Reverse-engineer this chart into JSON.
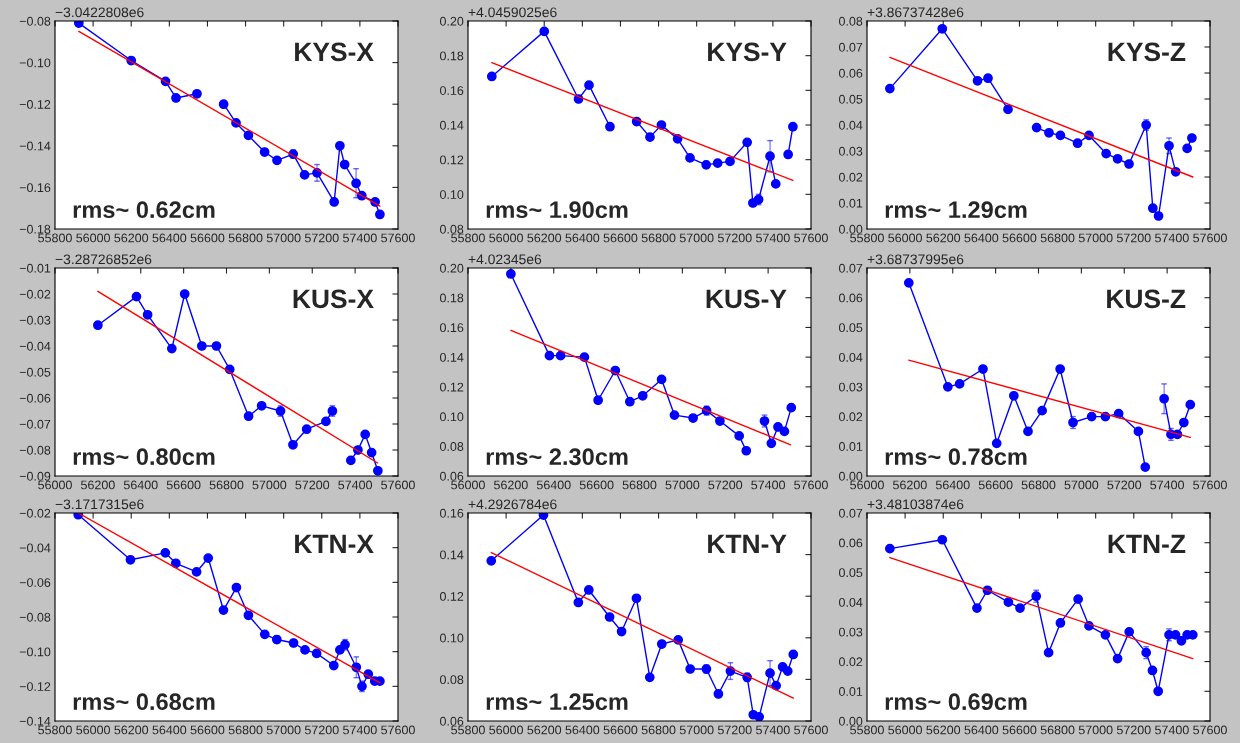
{
  "chart_data": [
    {
      "type": "line",
      "title": "KYS-X",
      "annotations": [
        "−3.0422808e6",
        "rms~ 0.62cm"
      ],
      "xlim": [
        55800,
        57600
      ],
      "xticks": [
        55800,
        56000,
        56200,
        56400,
        56600,
        56800,
        57000,
        57200,
        57400,
        57600
      ],
      "ylim": [
        -0.18,
        -0.08
      ],
      "yticks": [
        {
          "value": -0.18,
          "label": "−0.18"
        },
        {
          "value": -0.16,
          "label": "−0.16"
        },
        {
          "value": -0.14,
          "label": "−0.14"
        },
        {
          "value": -0.12,
          "label": "−0.12"
        },
        {
          "value": -0.1,
          "label": "−0.10"
        },
        {
          "value": -0.08,
          "label": "−0.08"
        }
      ],
      "grid": false,
      "series": [
        {
          "color": "#0000ff",
          "marker": "circle",
          "line_style": "solid",
          "x": [
            55925,
            56200,
            56380,
            56435,
            56545
          ],
          "values": [
            -0.081,
            -0.099,
            -0.109,
            -0.117,
            -0.115
          ]
        },
        {
          "color": "#0000ff",
          "marker": "circle",
          "line_style": "solid",
          "x": [
            56685,
            56750,
            56815,
            56900,
            56965,
            57050,
            57110,
            57175,
            57265,
            57295,
            57320,
            57380,
            57410,
            57480,
            57505
          ],
          "values": [
            -0.12,
            -0.129,
            -0.135,
            -0.143,
            -0.147,
            -0.144,
            -0.154,
            -0.153,
            -0.167,
            -0.14,
            -0.149,
            -0.158,
            -0.164,
            -0.167,
            -0.173
          ],
          "errors": [
            null,
            null,
            null,
            null,
            null,
            0.002,
            null,
            0.004,
            null,
            null,
            null,
            0.007,
            null,
            null,
            null
          ]
        },
        {
          "color": "#ff0000",
          "marker": "none",
          "line_style": "solid",
          "x": [
            55925,
            57505
          ],
          "values": [
            -0.085,
            -0.169
          ]
        }
      ]
    },
    {
      "type": "line",
      "title": "KYS-Y",
      "annotations": [
        "+4.0459025e6",
        "rms~ 1.90cm"
      ],
      "xlim": [
        55800,
        57600
      ],
      "xticks": [
        55800,
        56000,
        56200,
        56400,
        56600,
        56800,
        57000,
        57200,
        57400,
        57600
      ],
      "ylim": [
        0.08,
        0.2
      ],
      "yticks": [
        {
          "value": 0.08,
          "label": "0.08"
        },
        {
          "value": 0.1,
          "label": "0.10"
        },
        {
          "value": 0.12,
          "label": "0.12"
        },
        {
          "value": 0.14,
          "label": "0.14"
        },
        {
          "value": 0.16,
          "label": "0.16"
        },
        {
          "value": 0.18,
          "label": "0.18"
        },
        {
          "value": 0.2,
          "label": "0.20"
        }
      ],
      "grid": false,
      "series": [
        {
          "color": "#0000ff",
          "marker": "circle",
          "line_style": "solid",
          "x": [
            55925,
            56200,
            56380,
            56435,
            56545
          ],
          "values": [
            0.168,
            0.194,
            0.155,
            0.163,
            0.139
          ]
        },
        {
          "color": "#0000ff",
          "marker": "circle",
          "line_style": "solid",
          "x": [
            56685,
            56755,
            56815,
            56900,
            56965,
            57050,
            57110,
            57175,
            57265,
            57295,
            57325,
            57385,
            57415
          ],
          "values": [
            0.142,
            0.133,
            0.14,
            0.132,
            0.121,
            0.117,
            0.118,
            0.119,
            0.13,
            0.095,
            0.097,
            0.122,
            0.106
          ],
          "errors": [
            null,
            null,
            null,
            null,
            null,
            0.002,
            null,
            null,
            null,
            null,
            0.003,
            0.009,
            null
          ]
        },
        {
          "color": "#0000ff",
          "marker": "circle",
          "line_style": "solid",
          "x": [
            57480,
            57505
          ],
          "values": [
            0.123,
            0.139
          ]
        },
        {
          "color": "#ff0000",
          "marker": "none",
          "line_style": "solid",
          "x": [
            55925,
            57505
          ],
          "values": [
            0.176,
            0.108
          ]
        }
      ]
    },
    {
      "type": "line",
      "title": "KYS-Z",
      "annotations": [
        "+3.86737428e6",
        "rms~ 1.29cm"
      ],
      "xlim": [
        55800,
        57600
      ],
      "xticks": [
        55800,
        56000,
        56200,
        56400,
        56600,
        56800,
        57000,
        57200,
        57400,
        57600
      ],
      "ylim": [
        0.0,
        0.08
      ],
      "yticks": [
        {
          "value": 0.0,
          "label": "0.00"
        },
        {
          "value": 0.01,
          "label": "0.01"
        },
        {
          "value": 0.02,
          "label": "0.02"
        },
        {
          "value": 0.03,
          "label": "0.03"
        },
        {
          "value": 0.04,
          "label": "0.04"
        },
        {
          "value": 0.05,
          "label": "0.05"
        },
        {
          "value": 0.06,
          "label": "0.06"
        },
        {
          "value": 0.07,
          "label": "0.07"
        },
        {
          "value": 0.08,
          "label": "0.08"
        }
      ],
      "grid": false,
      "series": [
        {
          "color": "#0000ff",
          "marker": "circle",
          "line_style": "solid",
          "x": [
            55920,
            56195,
            56380,
            56435,
            56540
          ],
          "values": [
            0.054,
            0.077,
            0.057,
            0.058,
            0.046
          ]
        },
        {
          "color": "#0000ff",
          "marker": "circle",
          "line_style": "solid",
          "x": [
            56690,
            56755,
            56815,
            56905,
            56965,
            57055,
            57115,
            57175,
            57265,
            57300,
            57330,
            57385,
            57420
          ],
          "values": [
            0.039,
            0.037,
            0.036,
            0.033,
            0.036,
            0.029,
            0.027,
            0.025,
            0.04,
            0.008,
            0.005,
            0.032,
            0.022
          ],
          "errors": [
            null,
            null,
            null,
            null,
            null,
            null,
            null,
            null,
            0.002,
            null,
            null,
            0.003,
            null
          ]
        },
        {
          "color": "#0000ff",
          "marker": "circle",
          "line_style": "solid",
          "x": [
            57480,
            57505
          ],
          "values": [
            0.031,
            0.035
          ]
        },
        {
          "color": "#ff0000",
          "marker": "none",
          "line_style": "solid",
          "x": [
            55920,
            57510
          ],
          "values": [
            0.066,
            0.02
          ]
        }
      ]
    },
    {
      "type": "line",
      "title": "KUS-X",
      "annotations": [
        "−3.28726852e6",
        "rms~ 0.80cm"
      ],
      "xlim": [
        56000,
        57600
      ],
      "xticks": [
        56000,
        56200,
        56400,
        56600,
        56800,
        57000,
        57200,
        57400,
        57600
      ],
      "ylim": [
        -0.09,
        -0.01
      ],
      "yticks": [
        {
          "value": -0.09,
          "label": "−0.09"
        },
        {
          "value": -0.08,
          "label": "−0.08"
        },
        {
          "value": -0.07,
          "label": "−0.07"
        },
        {
          "value": -0.06,
          "label": "−0.06"
        },
        {
          "value": -0.05,
          "label": "−0.05"
        },
        {
          "value": -0.04,
          "label": "−0.04"
        },
        {
          "value": -0.03,
          "label": "−0.03"
        },
        {
          "value": -0.02,
          "label": "−0.02"
        },
        {
          "value": -0.01,
          "label": "−0.01"
        }
      ],
      "grid": false,
      "series": [
        {
          "color": "#0000ff",
          "marker": "circle",
          "line_style": "solid",
          "x": [
            56200,
            56380,
            56432,
            56545,
            56605,
            56685,
            56753,
            56815,
            56903,
            56964,
            57052,
            57110,
            57174,
            57264,
            57294
          ],
          "values": [
            -0.032,
            -0.021,
            -0.028,
            -0.041,
            -0.02,
            -0.04,
            -0.04,
            -0.049,
            -0.067,
            -0.063,
            -0.065,
            -0.078,
            -0.072,
            -0.069,
            -0.065
          ],
          "errors": [
            null,
            null,
            null,
            null,
            null,
            null,
            null,
            null,
            null,
            null,
            0.002,
            null,
            null,
            null,
            0.002
          ]
        },
        {
          "color": "#0000ff",
          "marker": "circle",
          "line_style": "solid",
          "x": [
            57380,
            57413,
            57447,
            57477,
            57506
          ],
          "values": [
            -0.084,
            -0.08,
            -0.074,
            -0.081,
            -0.088
          ]
        },
        {
          "color": "#ff0000",
          "marker": "none",
          "line_style": "solid",
          "x": [
            56200,
            57505
          ],
          "values": [
            -0.019,
            -0.085
          ]
        }
      ]
    },
    {
      "type": "line",
      "title": "KUS-Y",
      "annotations": [
        "+4.02345e6",
        "rms~ 2.30cm"
      ],
      "xlim": [
        56000,
        57600
      ],
      "xticks": [
        56000,
        56200,
        56400,
        56600,
        56800,
        57000,
        57200,
        57400,
        57600
      ],
      "ylim": [
        0.06,
        0.2
      ],
      "yticks": [
        {
          "value": 0.06,
          "label": "0.06"
        },
        {
          "value": 0.08,
          "label": "0.08"
        },
        {
          "value": 0.1,
          "label": "0.10"
        },
        {
          "value": 0.12,
          "label": "0.12"
        },
        {
          "value": 0.14,
          "label": "0.14"
        },
        {
          "value": 0.16,
          "label": "0.16"
        },
        {
          "value": 0.18,
          "label": "0.18"
        },
        {
          "value": 0.2,
          "label": "0.20"
        }
      ],
      "grid": false,
      "series": [
        {
          "color": "#0000ff",
          "marker": "circle",
          "line_style": "solid",
          "x": [
            56200,
            56380,
            56432,
            56543,
            56607,
            56687,
            56755,
            56815,
            56903,
            56963,
            57050,
            57113,
            57175,
            57265,
            57298
          ],
          "values": [
            0.196,
            0.141,
            0.141,
            0.14,
            0.111,
            0.131,
            0.11,
            0.114,
            0.125,
            0.101,
            0.099,
            0.104,
            0.097,
            0.087,
            0.077
          ],
          "errors": [
            null,
            null,
            null,
            null,
            null,
            null,
            null,
            null,
            null,
            null,
            null,
            0.003,
            null,
            null,
            null
          ]
        },
        {
          "color": "#0000ff",
          "marker": "circle",
          "line_style": "solid",
          "x": [
            57383,
            57415,
            57446,
            57476,
            57508
          ],
          "values": [
            0.097,
            0.082,
            0.093,
            0.09,
            0.106
          ],
          "errors": [
            0.004,
            null,
            null,
            null,
            null
          ]
        },
        {
          "color": "#ff0000",
          "marker": "none",
          "line_style": "solid",
          "x": [
            56200,
            57505
          ],
          "values": [
            0.158,
            0.081
          ]
        }
      ]
    },
    {
      "type": "line",
      "title": "KUS-Z",
      "annotations": [
        "+3.68737995e6",
        "rms~ 0.78cm"
      ],
      "xlim": [
        56000,
        57600
      ],
      "xticks": [
        56000,
        56200,
        56400,
        56600,
        56800,
        57000,
        57200,
        57400,
        57600
      ],
      "ylim": [
        0.0,
        0.07
      ],
      "yticks": [
        {
          "value": 0.0,
          "label": "0.00"
        },
        {
          "value": 0.01,
          "label": "0.01"
        },
        {
          "value": 0.02,
          "label": "0.02"
        },
        {
          "value": 0.03,
          "label": "0.03"
        },
        {
          "value": 0.04,
          "label": "0.04"
        },
        {
          "value": 0.05,
          "label": "0.05"
        },
        {
          "value": 0.06,
          "label": "0.06"
        },
        {
          "value": 0.07,
          "label": "0.07"
        }
      ],
      "grid": false,
      "series": [
        {
          "color": "#0000ff",
          "marker": "circle",
          "line_style": "solid",
          "x": [
            56195,
            56377,
            56432,
            56541,
            56605,
            56685,
            56751,
            56817,
            56901,
            56961,
            57048,
            57112,
            57174,
            57266,
            57298
          ],
          "values": [
            0.065,
            0.03,
            0.031,
            0.036,
            0.011,
            0.027,
            0.015,
            0.022,
            0.036,
            0.018,
            0.02,
            0.02,
            0.021,
            0.015,
            0.003
          ],
          "errors": [
            null,
            null,
            null,
            0.001,
            0.001,
            null,
            null,
            null,
            null,
            0.002,
            null,
            null,
            null,
            null,
            null
          ]
        },
        {
          "color": "#0000ff",
          "marker": "circle",
          "line_style": "solid",
          "x": [
            57386,
            57418,
            57448,
            57478,
            57508
          ],
          "values": [
            0.026,
            0.014,
            0.014,
            0.018,
            0.024
          ],
          "errors": [
            0.005,
            0.002,
            null,
            null,
            0.001
          ]
        },
        {
          "color": "#ff0000",
          "marker": "none",
          "line_style": "solid",
          "x": [
            56195,
            57508
          ],
          "values": [
            0.039,
            0.013
          ]
        }
      ]
    },
    {
      "type": "line",
      "title": "KTN-X",
      "annotations": [
        "−3.1717315e6",
        "rms~ 0.68cm"
      ],
      "xlim": [
        55800,
        57600
      ],
      "xticks": [
        55800,
        56000,
        56200,
        56400,
        56600,
        56800,
        57000,
        57200,
        57400,
        57600
      ],
      "ylim": [
        -0.14,
        -0.02
      ],
      "yticks": [
        {
          "value": -0.14,
          "label": "−0.14"
        },
        {
          "value": -0.12,
          "label": "−0.12"
        },
        {
          "value": -0.1,
          "label": "−0.10"
        },
        {
          "value": -0.08,
          "label": "−0.08"
        },
        {
          "value": -0.06,
          "label": "−0.06"
        },
        {
          "value": -0.04,
          "label": "−0.04"
        },
        {
          "value": -0.02,
          "label": "−0.02"
        }
      ],
      "grid": false,
      "series": [
        {
          "color": "#0000ff",
          "marker": "circle",
          "line_style": "solid",
          "x": [
            55922,
            56196,
            56379,
            56434,
            56543,
            56604,
            56684,
            56752,
            56815,
            56901,
            56964,
            57052,
            57112,
            57173,
            57263,
            57295,
            57322,
            57381,
            57411,
            57444,
            57478,
            57505
          ],
          "values": [
            -0.021,
            -0.047,
            -0.043,
            -0.049,
            -0.054,
            -0.046,
            -0.076,
            -0.063,
            -0.079,
            -0.09,
            -0.093,
            -0.095,
            -0.099,
            -0.101,
            -0.108,
            -0.099,
            -0.096,
            -0.109,
            -0.12,
            -0.113,
            -0.117,
            -0.117
          ],
          "errors": [
            null,
            null,
            null,
            null,
            null,
            null,
            null,
            null,
            null,
            null,
            0.002,
            0.002,
            null,
            0.002,
            null,
            null,
            0.003,
            0.006,
            0.003,
            null,
            null,
            null
          ]
        },
        {
          "color": "#ff0000",
          "marker": "none",
          "line_style": "solid",
          "x": [
            55922,
            57505
          ],
          "values": [
            -0.02,
            -0.118
          ]
        }
      ]
    },
    {
      "type": "line",
      "title": "KTN-Y",
      "annotations": [
        "+4.2926784e6",
        "rms~ 1.25cm"
      ],
      "xlim": [
        55800,
        57600
      ],
      "xticks": [
        55800,
        56000,
        56200,
        56400,
        56600,
        56800,
        57000,
        57200,
        57400,
        57600
      ],
      "ylim": [
        0.06,
        0.16
      ],
      "yticks": [
        {
          "value": 0.06,
          "label": "0.06"
        },
        {
          "value": 0.08,
          "label": "0.08"
        },
        {
          "value": 0.1,
          "label": "0.10"
        },
        {
          "value": 0.12,
          "label": "0.12"
        },
        {
          "value": 0.14,
          "label": "0.14"
        },
        {
          "value": 0.16,
          "label": "0.16"
        }
      ],
      "grid": false,
      "series": [
        {
          "color": "#0000ff",
          "marker": "circle",
          "line_style": "solid",
          "x": [
            55922,
            56196,
            56379,
            56434,
            56543,
            56606,
            56684,
            56754,
            56817,
            56903,
            56966,
            57051,
            57114,
            57177,
            57265,
            57297,
            57328,
            57385,
            57417,
            57451,
            57478,
            57507
          ],
          "values": [
            0.137,
            0.159,
            0.117,
            0.123,
            0.11,
            0.103,
            0.119,
            0.081,
            0.097,
            0.099,
            0.085,
            0.085,
            0.073,
            0.084,
            0.081,
            0.063,
            0.062,
            0.083,
            0.077,
            0.086,
            0.084,
            0.092
          ],
          "errors": [
            null,
            null,
            null,
            null,
            null,
            null,
            null,
            null,
            null,
            null,
            null,
            0.002,
            null,
            0.004,
            0.002,
            null,
            null,
            0.006,
            null,
            null,
            null,
            null
          ]
        },
        {
          "color": "#ff0000",
          "marker": "none",
          "line_style": "solid",
          "x": [
            55922,
            57507
          ],
          "values": [
            0.141,
            0.071
          ]
        }
      ]
    },
    {
      "type": "line",
      "title": "KTN-Z",
      "annotations": [
        "+3.48103874e6",
        "rms~ 0.69cm"
      ],
      "xlim": [
        55800,
        57600
      ],
      "xticks": [
        55800,
        56000,
        56200,
        56400,
        56600,
        56800,
        57000,
        57200,
        57400,
        57600
      ],
      "ylim": [
        0.0,
        0.07
      ],
      "yticks": [
        {
          "value": 0.0,
          "label": "0.00"
        },
        {
          "value": 0.01,
          "label": "0.01"
        },
        {
          "value": 0.02,
          "label": "0.02"
        },
        {
          "value": 0.03,
          "label": "0.03"
        },
        {
          "value": 0.04,
          "label": "0.04"
        },
        {
          "value": 0.05,
          "label": "0.05"
        },
        {
          "value": 0.06,
          "label": "0.06"
        },
        {
          "value": 0.07,
          "label": "0.07"
        }
      ],
      "grid": false,
      "series": [
        {
          "color": "#0000ff",
          "marker": "circle",
          "line_style": "solid",
          "x": [
            55920,
            56195,
            56377,
            56432,
            56542,
            56603,
            56688,
            56753,
            56815,
            56908,
            56965,
            57051,
            57115,
            57176,
            57265,
            57298,
            57328,
            57385,
            57419,
            57450,
            57480,
            57510
          ],
          "values": [
            0.058,
            0.061,
            0.038,
            0.044,
            0.04,
            0.038,
            0.042,
            0.023,
            0.033,
            0.041,
            0.032,
            0.029,
            0.021,
            0.03,
            0.023,
            0.017,
            0.01,
            0.029,
            0.029,
            0.027,
            0.029,
            0.029
          ],
          "errors": [
            null,
            null,
            null,
            null,
            null,
            null,
            0.002,
            null,
            null,
            null,
            null,
            null,
            null,
            null,
            0.002,
            null,
            null,
            0.002,
            null,
            null,
            null,
            null
          ]
        },
        {
          "color": "#ff0000",
          "marker": "none",
          "line_style": "solid",
          "x": [
            55920,
            57510
          ],
          "values": [
            0.055,
            0.021
          ]
        }
      ]
    }
  ]
}
